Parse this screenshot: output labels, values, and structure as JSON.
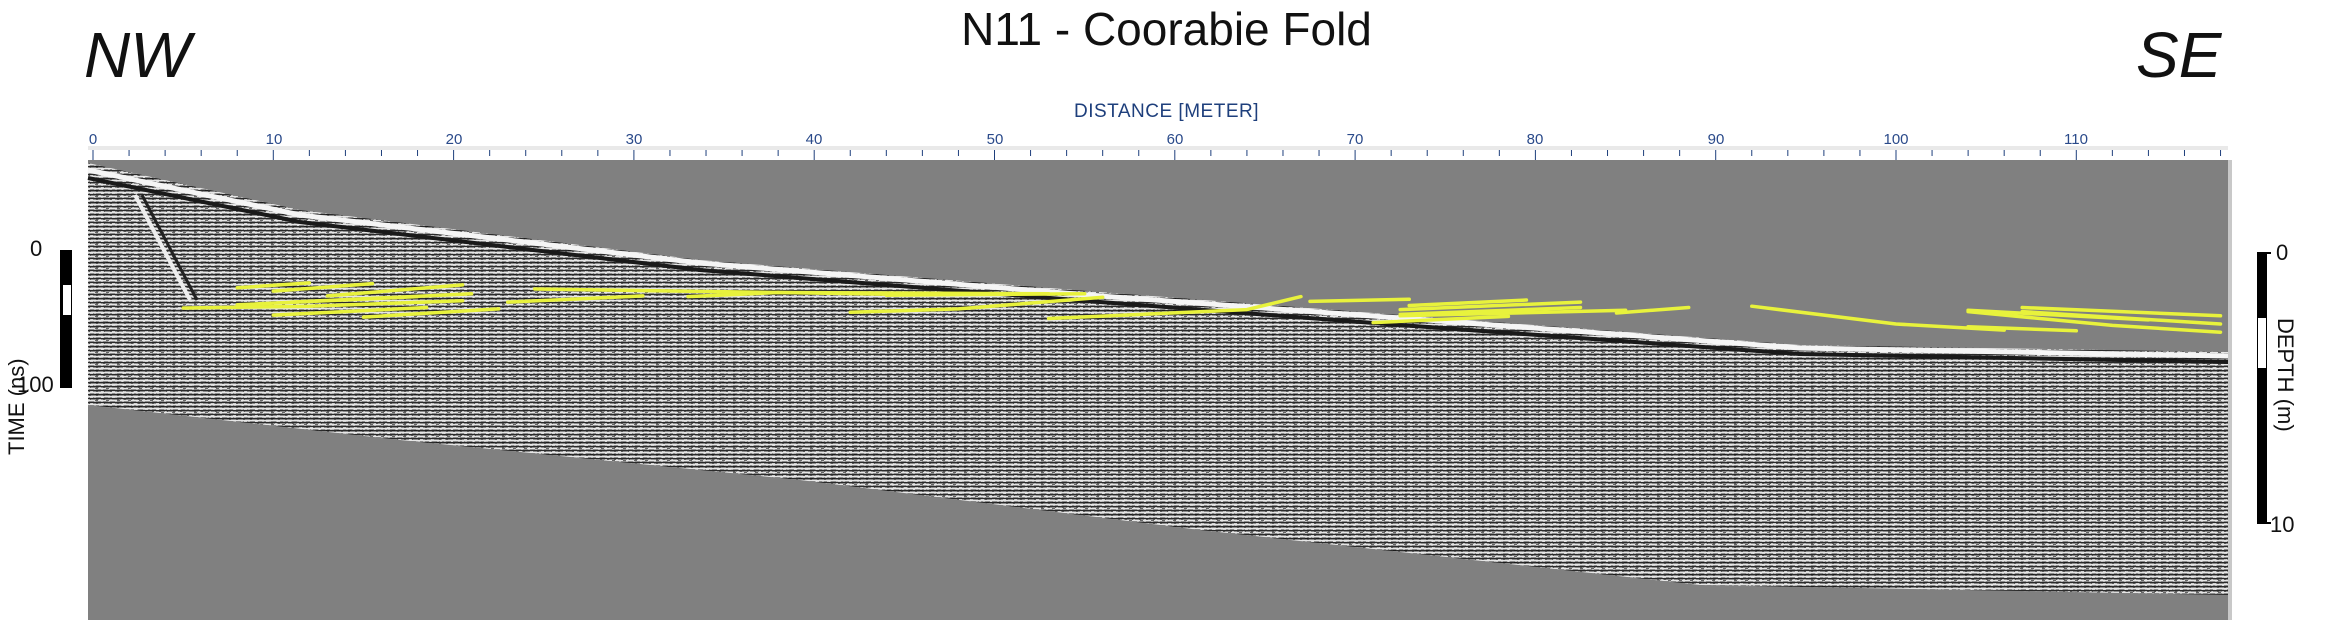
{
  "figure": {
    "title": "N11 - Coorabie Fold",
    "left_direction": "NW",
    "right_direction": "SE"
  },
  "distance_axis": {
    "label": "DISTANCE [METER]",
    "ticks": [
      "0",
      "10",
      "20",
      "30",
      "40",
      "50",
      "60",
      "70",
      "80",
      "90",
      "100",
      "110"
    ],
    "range_m": [
      0,
      118
    ]
  },
  "time_scale": {
    "label": "TIME (ns)",
    "ticks": [
      "0",
      "100"
    ]
  },
  "depth_scale": {
    "label": "DEPTH (m)",
    "ticks": [
      "0",
      "10"
    ]
  },
  "colors": {
    "radargram_background": "#808080",
    "interpretation_lines": "#e8f23c",
    "axis_text": "#1e3f7c"
  },
  "interpreted_reflectors": [
    [
      [
        8,
        27.6
      ],
      [
        12,
        24
      ]
    ],
    [
      [
        10,
        30
      ],
      [
        15.5,
        24.5
      ]
    ],
    [
      [
        13,
        33.5
      ],
      [
        20.5,
        25.5
      ]
    ],
    [
      [
        8,
        40
      ],
      [
        18,
        34
      ]
    ],
    [
      [
        11,
        38
      ],
      [
        21,
        32
      ]
    ],
    [
      [
        5,
        42.3
      ],
      [
        12,
        41
      ],
      [
        20.5,
        37
      ]
    ],
    [
      [
        10,
        47.5
      ],
      [
        18.5,
        42
      ]
    ],
    [
      [
        15,
        49
      ],
      [
        22.5,
        43
      ]
    ],
    [
      [
        23,
        38
      ],
      [
        30.5,
        33.5
      ]
    ],
    [
      [
        24.5,
        28.5
      ],
      [
        38,
        31
      ],
      [
        45,
        32.5
      ]
    ],
    [
      [
        33,
        34
      ],
      [
        38,
        31
      ]
    ],
    [
      [
        38,
        31
      ],
      [
        53,
        32
      ]
    ],
    [
      [
        44,
        33
      ],
      [
        55,
        32
      ]
    ],
    [
      [
        42,
        45.5
      ],
      [
        48,
        43
      ],
      [
        56,
        34.5
      ]
    ],
    [
      [
        53,
        50
      ],
      [
        64,
        43.5
      ],
      [
        67,
        34
      ]
    ],
    [
      [
        67.5,
        37.5
      ],
      [
        73,
        36
      ]
    ],
    [
      [
        73,
        40.5
      ],
      [
        79.5,
        36.5
      ]
    ],
    [
      [
        72.5,
        43.5
      ],
      [
        82.5,
        38
      ]
    ],
    [
      [
        72.5,
        47
      ],
      [
        82.5,
        42
      ]
    ],
    [
      [
        72.5,
        48
      ],
      [
        85,
        44
      ]
    ],
    [
      [
        71,
        53
      ],
      [
        78.5,
        48.5
      ]
    ],
    [
      [
        84.5,
        46
      ],
      [
        88.5,
        42
      ]
    ],
    [
      [
        92,
        41
      ],
      [
        100,
        54
      ],
      [
        106,
        58.5
      ]
    ],
    [
      [
        104,
        56
      ],
      [
        110,
        59
      ]
    ],
    [
      [
        104,
        44
      ],
      [
        114,
        51
      ]
    ],
    [
      [
        107,
        42
      ],
      [
        118,
        48
      ]
    ],
    [
      [
        107,
        45
      ],
      [
        118,
        54
      ]
    ],
    [
      [
        104,
        45
      ],
      [
        112,
        55
      ],
      [
        118,
        60
      ]
    ]
  ]
}
